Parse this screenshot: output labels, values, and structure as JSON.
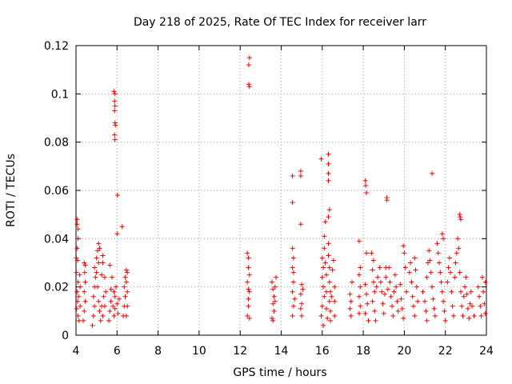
{
  "chart_data": {
    "type": "scatter",
    "title": "Day 218 of 2025, Rate Of TEC Index for receiver larr",
    "xlabel": "GPS time / hours",
    "ylabel": "ROTI / TECUs",
    "xlim": [
      4,
      24
    ],
    "ylim": [
      0,
      0.12
    ],
    "xticks": [
      4,
      6,
      8,
      10,
      12,
      14,
      16,
      18,
      20,
      22,
      24
    ],
    "yticks": [
      0,
      0.02,
      0.04,
      0.06,
      0.08,
      0.1,
      0.12
    ],
    "ytick_labels": [
      "0",
      "0.02",
      "0.04",
      "0.06",
      "0.08",
      "0.1",
      "0.12"
    ],
    "grid": true,
    "marker": "plus",
    "color": "#ff0000",
    "series": [
      {
        "points": [
          [
            4.02,
            0.032
          ],
          [
            4.05,
            0.048
          ],
          [
            4.05,
            0.046
          ],
          [
            4.1,
            0.044
          ],
          [
            4.1,
            0.04
          ],
          [
            4.05,
            0.036
          ],
          [
            4.08,
            0.031
          ],
          [
            4.02,
            0.026
          ],
          [
            4.1,
            0.022
          ],
          [
            4.05,
            0.018
          ],
          [
            4.08,
            0.014
          ],
          [
            4.03,
            0.011
          ],
          [
            4.1,
            0.008
          ],
          [
            4.15,
            0.006
          ],
          [
            4.2,
            0.012
          ],
          [
            4.12,
            0.016
          ],
          [
            4.2,
            0.02
          ],
          [
            4.18,
            0.025
          ],
          [
            4.35,
            0.006
          ],
          [
            4.4,
            0.01
          ],
          [
            4.45,
            0.014
          ],
          [
            4.4,
            0.018
          ],
          [
            4.45,
            0.022
          ],
          [
            4.42,
            0.026
          ],
          [
            4.45,
            0.029
          ],
          [
            4.4,
            0.03
          ],
          [
            4.8,
            0.004
          ],
          [
            4.85,
            0.008
          ],
          [
            4.9,
            0.012
          ],
          [
            4.85,
            0.016
          ],
          [
            4.9,
            0.02
          ],
          [
            4.95,
            0.024
          ],
          [
            4.9,
            0.028
          ],
          [
            5.0,
            0.032
          ],
          [
            5.05,
            0.035
          ],
          [
            5.1,
            0.038
          ],
          [
            5.15,
            0.036
          ],
          [
            5.1,
            0.03
          ],
          [
            5.0,
            0.026
          ],
          [
            5.05,
            0.02
          ],
          [
            5.1,
            0.014
          ],
          [
            5.15,
            0.01
          ],
          [
            5.2,
            0.006
          ],
          [
            5.25,
            0.012
          ],
          [
            5.3,
            0.03
          ],
          [
            5.3,
            0.033
          ],
          [
            5.25,
            0.025
          ],
          [
            5.35,
            0.016
          ],
          [
            5.3,
            0.008
          ],
          [
            5.4,
            0.012
          ],
          [
            5.45,
            0.018
          ],
          [
            5.4,
            0.024
          ],
          [
            5.6,
            0.006
          ],
          [
            5.65,
            0.01
          ],
          [
            5.7,
            0.014
          ],
          [
            5.7,
            0.019
          ],
          [
            5.75,
            0.024
          ],
          [
            5.65,
            0.029
          ],
          [
            5.8,
            0.012
          ],
          [
            5.85,
            0.008
          ],
          [
            5.9,
            0.016
          ],
          [
            5.95,
            0.02
          ],
          [
            6.0,
            0.013
          ],
          [
            6.05,
            0.009
          ],
          [
            6.1,
            0.015
          ],
          [
            5.85,
            0.018
          ],
          [
            5.9,
            0.011
          ],
          [
            5.85,
            0.101
          ],
          [
            5.9,
            0.1
          ],
          [
            5.88,
            0.097
          ],
          [
            5.9,
            0.095
          ],
          [
            5.88,
            0.093
          ],
          [
            5.9,
            0.088
          ],
          [
            5.92,
            0.087
          ],
          [
            5.88,
            0.083
          ],
          [
            5.9,
            0.081
          ],
          [
            6.02,
            0.058
          ],
          [
            6.0,
            0.042
          ],
          [
            6.25,
            0.045
          ],
          [
            6.3,
            0.008
          ],
          [
            6.35,
            0.012
          ],
          [
            6.4,
            0.016
          ],
          [
            6.35,
            0.02
          ],
          [
            6.4,
            0.024
          ],
          [
            6.45,
            0.027
          ],
          [
            6.45,
            0.022
          ],
          [
            6.5,
            0.018
          ],
          [
            6.5,
            0.012
          ],
          [
            6.45,
            0.008
          ],
          [
            6.5,
            0.026
          ],
          [
            12.35,
            0.034
          ],
          [
            12.4,
            0.032
          ],
          [
            12.4,
            0.028
          ],
          [
            12.35,
            0.022
          ],
          [
            12.4,
            0.019
          ],
          [
            12.45,
            0.018
          ],
          [
            12.4,
            0.012
          ],
          [
            12.35,
            0.008
          ],
          [
            12.45,
            0.007
          ],
          [
            12.45,
            0.025
          ],
          [
            12.4,
            0.015
          ],
          [
            12.45,
            0.115
          ],
          [
            12.42,
            0.112
          ],
          [
            12.42,
            0.104
          ],
          [
            12.45,
            0.103
          ],
          [
            13.55,
            0.022
          ],
          [
            13.6,
            0.019
          ],
          [
            13.65,
            0.016
          ],
          [
            13.6,
            0.013
          ],
          [
            13.65,
            0.01
          ],
          [
            13.55,
            0.007
          ],
          [
            13.7,
            0.014
          ],
          [
            13.7,
            0.02
          ],
          [
            13.75,
            0.024
          ],
          [
            13.6,
            0.006
          ],
          [
            14.55,
            0.066
          ],
          [
            14.55,
            0.055
          ],
          [
            14.55,
            0.036
          ],
          [
            14.6,
            0.032
          ],
          [
            14.55,
            0.028
          ],
          [
            14.6,
            0.022
          ],
          [
            14.55,
            0.018
          ],
          [
            14.6,
            0.012
          ],
          [
            14.55,
            0.008
          ],
          [
            14.65,
            0.015
          ],
          [
            14.6,
            0.026
          ],
          [
            14.95,
            0.068
          ],
          [
            14.95,
            0.066
          ],
          [
            14.95,
            0.046
          ],
          [
            15.0,
            0.021
          ],
          [
            14.95,
            0.017
          ],
          [
            15.0,
            0.013
          ],
          [
            14.95,
            0.011
          ],
          [
            15.0,
            0.008
          ],
          [
            15.05,
            0.019
          ],
          [
            15.95,
            0.073
          ],
          [
            16.0,
            0.032
          ],
          [
            16.05,
            0.028
          ],
          [
            16.0,
            0.024
          ],
          [
            16.05,
            0.02
          ],
          [
            16.1,
            0.016
          ],
          [
            16.0,
            0.012
          ],
          [
            15.95,
            0.008
          ],
          [
            16.05,
            0.004
          ],
          [
            16.1,
            0.036
          ],
          [
            16.1,
            0.041
          ],
          [
            16.15,
            0.047
          ],
          [
            16.15,
            0.03
          ],
          [
            16.2,
            0.025
          ],
          [
            16.2,
            0.018
          ],
          [
            16.2,
            0.011
          ],
          [
            16.25,
            0.007
          ],
          [
            16.3,
            0.075
          ],
          [
            16.3,
            0.071
          ],
          [
            16.3,
            0.067
          ],
          [
            16.3,
            0.064
          ],
          [
            16.35,
            0.052
          ],
          [
            16.3,
            0.049
          ],
          [
            16.3,
            0.038
          ],
          [
            16.3,
            0.033
          ],
          [
            16.35,
            0.028
          ],
          [
            16.35,
            0.022
          ],
          [
            16.4,
            0.018
          ],
          [
            16.35,
            0.014
          ],
          [
            16.4,
            0.01
          ],
          [
            16.4,
            0.006
          ],
          [
            16.45,
            0.016
          ],
          [
            16.5,
            0.027
          ],
          [
            16.55,
            0.031
          ],
          [
            16.6,
            0.02
          ],
          [
            16.6,
            0.014
          ],
          [
            16.6,
            0.008
          ],
          [
            17.35,
            0.017
          ],
          [
            17.4,
            0.014
          ],
          [
            17.35,
            0.011
          ],
          [
            17.4,
            0.008
          ],
          [
            17.45,
            0.022
          ],
          [
            17.8,
            0.039
          ],
          [
            17.85,
            0.028
          ],
          [
            17.8,
            0.025
          ],
          [
            17.85,
            0.02
          ],
          [
            17.8,
            0.016
          ],
          [
            17.85,
            0.012
          ],
          [
            17.8,
            0.009
          ],
          [
            18.1,
            0.064
          ],
          [
            18.12,
            0.062
          ],
          [
            18.15,
            0.059
          ],
          [
            18.15,
            0.034
          ],
          [
            18.1,
            0.021
          ],
          [
            18.15,
            0.017
          ],
          [
            18.2,
            0.013
          ],
          [
            18.1,
            0.009
          ],
          [
            18.25,
            0.006
          ],
          [
            18.4,
            0.034
          ],
          [
            18.5,
            0.031
          ],
          [
            18.45,
            0.027
          ],
          [
            18.5,
            0.022
          ],
          [
            18.55,
            0.018
          ],
          [
            18.45,
            0.014
          ],
          [
            18.55,
            0.01
          ],
          [
            18.6,
            0.006
          ],
          [
            18.65,
            0.02
          ],
          [
            18.7,
            0.024
          ],
          [
            18.8,
            0.028
          ],
          [
            18.85,
            0.022
          ],
          [
            18.9,
            0.018
          ],
          [
            18.95,
            0.013
          ],
          [
            19.0,
            0.009
          ],
          [
            19.05,
            0.017
          ],
          [
            19.1,
            0.024
          ],
          [
            19.15,
            0.057
          ],
          [
            19.15,
            0.056
          ],
          [
            19.1,
            0.028
          ],
          [
            19.2,
            0.019
          ],
          [
            19.25,
            0.028
          ],
          [
            19.3,
            0.022
          ],
          [
            19.35,
            0.016
          ],
          [
            19.4,
            0.012
          ],
          [
            19.45,
            0.008
          ],
          [
            19.5,
            0.018
          ],
          [
            19.55,
            0.025
          ],
          [
            19.6,
            0.02
          ],
          [
            19.65,
            0.014
          ],
          [
            19.7,
            0.01
          ],
          [
            19.8,
            0.021
          ],
          [
            19.85,
            0.015
          ],
          [
            19.9,
            0.011
          ],
          [
            19.95,
            0.007
          ],
          [
            20.0,
            0.034
          ],
          [
            19.95,
            0.037
          ],
          [
            20.05,
            0.028
          ],
          [
            20.1,
            0.018
          ],
          [
            20.25,
            0.026
          ],
          [
            20.3,
            0.03
          ],
          [
            20.35,
            0.022
          ],
          [
            20.4,
            0.016
          ],
          [
            20.45,
            0.012
          ],
          [
            20.5,
            0.008
          ],
          [
            20.5,
            0.032
          ],
          [
            20.55,
            0.027
          ],
          [
            20.6,
            0.02
          ],
          [
            20.65,
            0.014
          ],
          [
            20.9,
            0.018
          ],
          [
            21.0,
            0.014
          ],
          [
            21.05,
            0.01
          ],
          [
            21.1,
            0.006
          ],
          [
            21.1,
            0.024
          ],
          [
            21.15,
            0.03
          ],
          [
            21.2,
            0.035
          ],
          [
            21.25,
            0.031
          ],
          [
            21.3,
            0.026
          ],
          [
            21.35,
            0.02
          ],
          [
            21.4,
            0.015
          ],
          [
            21.45,
            0.011
          ],
          [
            21.5,
            0.008
          ],
          [
            21.35,
            0.067
          ],
          [
            21.6,
            0.038
          ],
          [
            21.65,
            0.034
          ],
          [
            21.7,
            0.03
          ],
          [
            21.75,
            0.026
          ],
          [
            21.8,
            0.022
          ],
          [
            21.85,
            0.018
          ],
          [
            21.9,
            0.014
          ],
          [
            21.95,
            0.01
          ],
          [
            22.0,
            0.006
          ],
          [
            21.85,
            0.042
          ],
          [
            21.9,
            0.04
          ],
          [
            22.1,
            0.022
          ],
          [
            22.15,
            0.028
          ],
          [
            22.2,
            0.032
          ],
          [
            22.25,
            0.026
          ],
          [
            22.3,
            0.018
          ],
          [
            22.35,
            0.012
          ],
          [
            22.4,
            0.008
          ],
          [
            22.45,
            0.024
          ],
          [
            22.5,
            0.03
          ],
          [
            22.55,
            0.034
          ],
          [
            22.6,
            0.04
          ],
          [
            22.65,
            0.036
          ],
          [
            22.7,
            0.026
          ],
          [
            22.75,
            0.018
          ],
          [
            22.8,
            0.012
          ],
          [
            22.85,
            0.008
          ],
          [
            22.7,
            0.05
          ],
          [
            22.72,
            0.049
          ],
          [
            22.75,
            0.048
          ],
          [
            22.9,
            0.016
          ],
          [
            22.95,
            0.02
          ],
          [
            23.0,
            0.024
          ],
          [
            23.05,
            0.017
          ],
          [
            23.1,
            0.011
          ],
          [
            23.15,
            0.007
          ],
          [
            23.2,
            0.013
          ],
          [
            23.25,
            0.018
          ],
          [
            23.3,
            0.012
          ],
          [
            23.4,
            0.008
          ],
          [
            23.6,
            0.02
          ],
          [
            23.65,
            0.016
          ],
          [
            23.7,
            0.012
          ],
          [
            23.75,
            0.008
          ],
          [
            23.8,
            0.024
          ],
          [
            23.85,
            0.018
          ],
          [
            23.9,
            0.013
          ],
          [
            23.95,
            0.009
          ],
          [
            23.95,
            0.022
          ]
        ]
      }
    ]
  }
}
